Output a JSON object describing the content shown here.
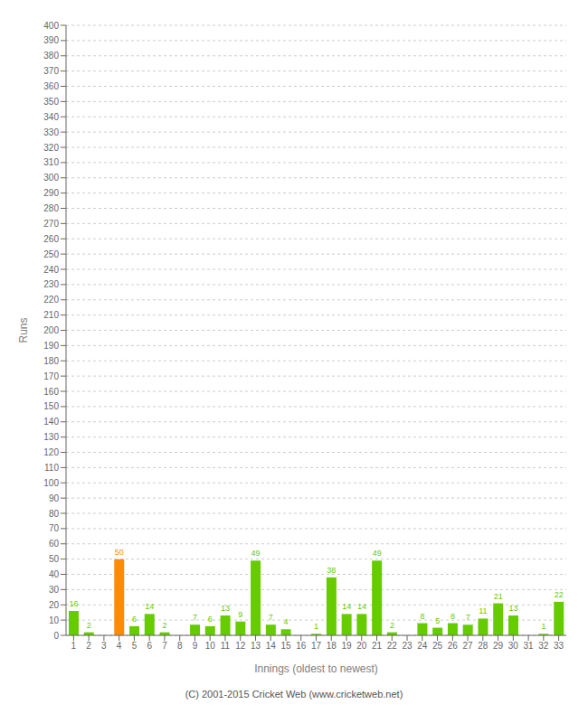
{
  "chart_data": {
    "type": "bar",
    "categories": [
      "1",
      "2",
      "3",
      "4",
      "5",
      "6",
      "7",
      "8",
      "9",
      "10",
      "11",
      "12",
      "13",
      "14",
      "15",
      "16",
      "17",
      "18",
      "19",
      "20",
      "21",
      "22",
      "23",
      "24",
      "25",
      "26",
      "27",
      "28",
      "29",
      "30",
      "31",
      "32",
      "33"
    ],
    "values": [
      16,
      2,
      0,
      50,
      6,
      14,
      2,
      0,
      7,
      6,
      13,
      9,
      49,
      7,
      4,
      0,
      1,
      38,
      14,
      14,
      49,
      2,
      0,
      8,
      5,
      8,
      7,
      11,
      21,
      13,
      0,
      1,
      22
    ],
    "colors": [
      "#66cc00",
      "#66cc00",
      "#66cc00",
      "#ff8c00",
      "#66cc00",
      "#66cc00",
      "#66cc00",
      "#66cc00",
      "#66cc00",
      "#66cc00",
      "#66cc00",
      "#66cc00",
      "#66cc00",
      "#66cc00",
      "#66cc00",
      "#66cc00",
      "#66cc00",
      "#66cc00",
      "#66cc00",
      "#66cc00",
      "#66cc00",
      "#66cc00",
      "#66cc00",
      "#66cc00",
      "#66cc00",
      "#66cc00",
      "#66cc00",
      "#66cc00",
      "#66cc00",
      "#66cc00",
      "#66cc00",
      "#66cc00",
      "#66cc00"
    ],
    "xlabel": "Innings (oldest to newest)",
    "ylabel": "Runs",
    "ylim": [
      0,
      400
    ],
    "yticks": [
      0,
      10,
      20,
      30,
      40,
      50,
      60,
      70,
      80,
      90,
      100,
      110,
      120,
      130,
      140,
      150,
      160,
      170,
      180,
      190,
      200,
      210,
      220,
      230,
      240,
      250,
      260,
      270,
      280,
      290,
      300,
      310,
      320,
      330,
      340,
      350,
      360,
      370,
      380,
      390,
      400
    ],
    "grid": true,
    "data_labels": true,
    "annotations": [
      "(C) 2001-2015 Cricket Web (www.cricketweb.net)"
    ]
  }
}
